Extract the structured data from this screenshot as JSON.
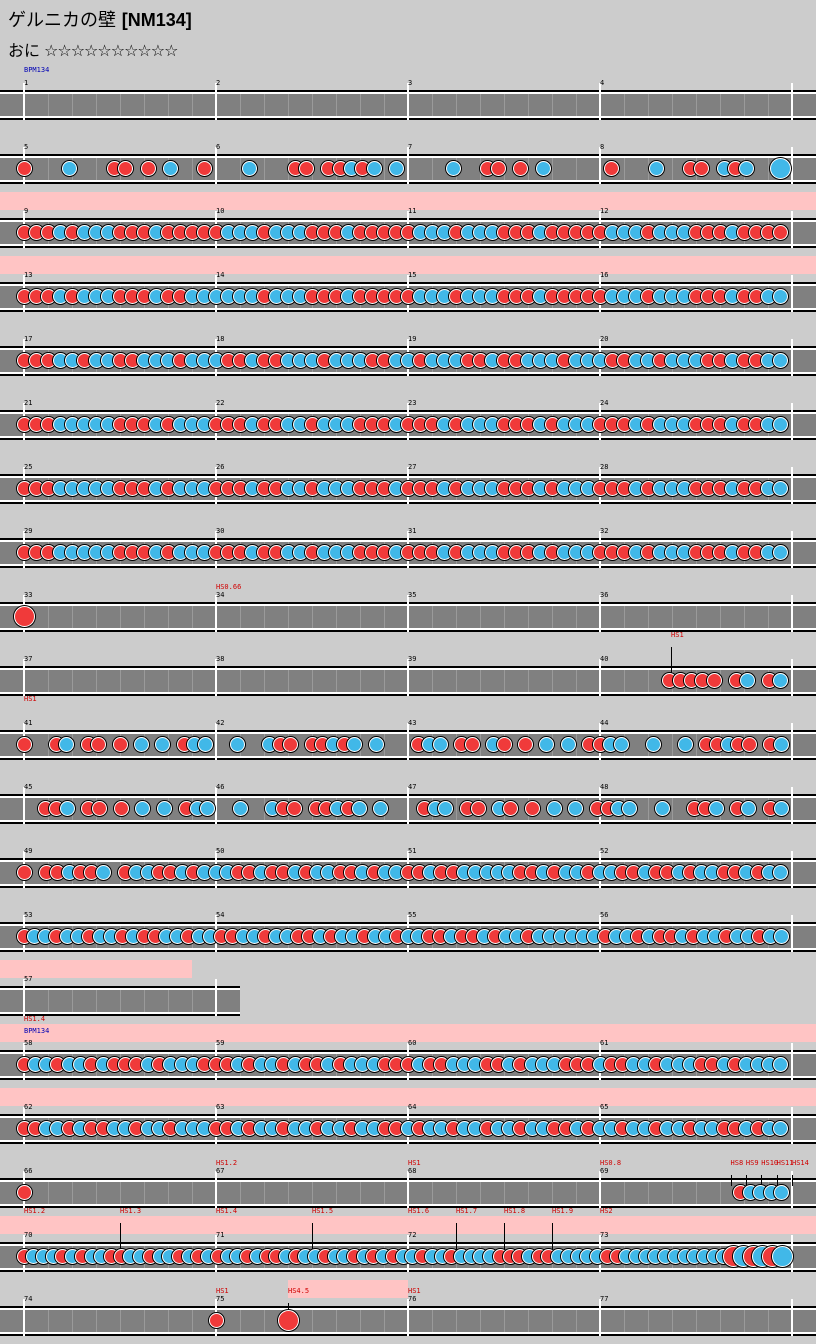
{
  "song": {
    "title": "ゲルニカの壁",
    "tag": "[NM134]"
  },
  "difficulty": {
    "label": "おに",
    "stars": "☆☆☆☆☆☆☆☆☆☆"
  },
  "rows": [
    {
      "measures": [
        "1",
        "2",
        "3",
        "4"
      ],
      "events": [
        {
          "text": "BPM134",
          "m": 0,
          "f": 0,
          "type": "bpm",
          "dy": 0
        }
      ],
      "notes": "................................................................................................"
    },
    {
      "measures": [
        "5",
        "6",
        "7",
        "8"
      ],
      "events": [],
      "notes": "r...b...rr.r.b..r...b...rr.rrbrb.b....b..rr.r.b.....r...b..rr.brb..B"
    },
    {
      "measures": [
        "9",
        "10",
        "11",
        "12"
      ],
      "gogo": [
        [
          0,
          4
        ]
      ],
      "events": [],
      "notes": "rrrbrbbbrrrbrrrrrbbbrbbbrrrbrrrrrbbbrbbbrrrbrrrrrbbbrbbbrrrbrrrr"
    },
    {
      "measures": [
        "13",
        "14",
        "15",
        "16"
      ],
      "gogo": [
        [
          0,
          4
        ]
      ],
      "events": [],
      "notes": "rrrbrbbbrrrbrrbbbbbbrbbbrrrbrrrrrbbbrbbbrrrbrrrrrbbbrbbbrrrbrrbb"
    },
    {
      "measures": [
        "17",
        "18",
        "19",
        "20"
      ],
      "events": [],
      "notes": "rrrbbrbbrrbbbrbbbrrbrrbbbrbbbrrbbrbbbrrbrrbbbrbbbrrbbrbbbrrbrrbb"
    },
    {
      "measures": [
        "21",
        "22",
        "23",
        "24"
      ],
      "events": [],
      "notes": "rrrbbbbbrrrbrbbbrrrbrrbbrbbbrrrbrrrbrbbbrrrbrbbbrrrbrbbbrrrbrrbb"
    },
    {
      "measures": [
        "25",
        "26",
        "27",
        "28"
      ],
      "events": [],
      "notes": "rrrbbbbbrrrbrbbbrrrbrrbbrbbbrrrbrrrbrbbbrrrbrbbbrrrbrbbbrrrbrrbb"
    },
    {
      "measures": [
        "29",
        "30",
        "31",
        "32"
      ],
      "events": [],
      "notes": "rrrbbbbbrrrbrbbbrrrbrrbbrbbbrrrbrrrbrbbbrrrbrbbbrrrbrbbbrrrbrrbb"
    },
    {
      "measures": [
        "33",
        "34",
        "35",
        "36"
      ],
      "events": [
        {
          "text": "HS0.66",
          "m": 1,
          "f": 0,
          "type": "hs",
          "dy": 0
        }
      ],
      "notes": "R..............................................................."
    },
    {
      "measures": [
        "37",
        "38",
        "39",
        "40"
      ],
      "events": [
        {
          "text": "HS1",
          "m": 3,
          "f": 0.37,
          "type": "hs",
          "dy": -16,
          "tick": true
        }
      ],
      "notes": "..........................................................rrrrr.rb.rb"
    },
    {
      "measures": [
        "41",
        "42",
        "43",
        "44"
      ],
      "events": [
        {
          "text": "HS1",
          "m": 0,
          "f": 0,
          "type": "hs",
          "dy": -16
        }
      ],
      "notes": "r..rb.rr.r.b.b.rbb..b..brr.rrbrb.b...rbb.rr.br.r.b.b.rrbb..b..b.rrbrr.rb"
    },
    {
      "measures": [
        "45",
        "46",
        "47",
        "48"
      ],
      "events": [],
      "notes": "..rrb.rr.r.b.b.rbb..b..brr.rrbrb.b...rbb.rr.br.r.b.b.rrbb..b..rrb.rb.rb"
    },
    {
      "measures": [
        "49",
        "50",
        "51",
        "52"
      ],
      "events": [],
      "notes": "r.rrbrrb.rbbrrbrbbbrrbrrbrbbrrbrbbrrbrrbbbbbrrbrbbrbbrrbrrbrbbrrbrbb"
    },
    {
      "measures": [
        "53",
        "54",
        "55",
        "56"
      ],
      "events": [],
      "notes": "rbbrbbrbbrbrrbbrbbrrbbrbbrrbrbbrbbrbbrrbrrbrbbrbbbbbbrbbrbrrbrbbrbbrbb"
    },
    {
      "measures": [
        "57"
      ],
      "gogo": [
        [
          0,
          0.875
        ]
      ],
      "short": 1.25,
      "events": [],
      "notes": ""
    },
    {
      "measures": [
        "58",
        "59",
        "60",
        "61"
      ],
      "gogo": [
        [
          0,
          4
        ]
      ],
      "events": [
        {
          "text": "HS1.4",
          "m": 0,
          "f": 0,
          "type": "hs",
          "dy": -16
        },
        {
          "text": "BPM134",
          "m": 0,
          "f": 0,
          "type": "bpm",
          "dy": -10
        }
      ],
      "notes": "rbbrbbrbrrrbrbbbrrrbrbbrbrrbrbbbrrrbrrbbbrrbrbbbrrrbrrbbrbbbrrbrbbbb"
    },
    {
      "measures": [
        "62",
        "63",
        "64",
        "65"
      ],
      "gogo": [
        [
          0,
          4
        ]
      ],
      "events": [],
      "notes": "rrbbrbrrbbrbbrbbbrrbrbbrbbrbbrbbrrbrbbrbbrbbrbbrrbrbbrbbrbbrbbrrbrbb"
    },
    {
      "measures": [
        "66",
        "67",
        "68",
        "69"
      ],
      "events": [
        {
          "text": "HS1.2",
          "m": 1,
          "f": 0,
          "type": "hs",
          "dy": 0
        },
        {
          "text": "HS1",
          "m": 2,
          "f": 0,
          "type": "hs",
          "dy": 0
        },
        {
          "text": "HS0.8",
          "m": 3,
          "f": 0,
          "type": "hs",
          "dy": 0
        },
        {
          "text": "HS8",
          "m": 3,
          "f": 0.68,
          "type": "hs",
          "dy": 0,
          "tick": true
        },
        {
          "text": "HS9",
          "m": 3,
          "f": 0.76,
          "type": "hs",
          "dy": 0,
          "tick": true
        },
        {
          "text": "HS10",
          "m": 3,
          "f": 0.84,
          "type": "hs",
          "dy": 0,
          "tick": true
        },
        {
          "text": "HS11",
          "m": 3,
          "f": 0.92,
          "type": "hs",
          "dy": 0,
          "tick": true
        },
        {
          "text": "HS14",
          "m": 3,
          "f": 1.0,
          "type": "hs",
          "dy": 0,
          "tick": true
        }
      ],
      "notes": "r....................................................................rbbbb"
    },
    {
      "measures": [
        "70",
        "71",
        "72",
        "73"
      ],
      "gogo": [
        [
          0,
          4
        ]
      ],
      "events": [
        {
          "text": "HS1.2",
          "m": 0,
          "f": 0,
          "type": "hs",
          "dy": -16
        },
        {
          "text": "HS1.3",
          "m": 0,
          "f": 0.5,
          "type": "hs",
          "dy": -16,
          "tick": true
        },
        {
          "text": "HS1.4",
          "m": 1,
          "f": 0,
          "type": "hs",
          "dy": -16
        },
        {
          "text": "HS1.5",
          "m": 1,
          "f": 0.5,
          "type": "hs",
          "dy": -16,
          "tick": true
        },
        {
          "text": "HS1.6",
          "m": 2,
          "f": 0,
          "type": "hs",
          "dy": -16
        },
        {
          "text": "HS1.7",
          "m": 2,
          "f": 0.25,
          "type": "hs",
          "dy": -16,
          "tick": true
        },
        {
          "text": "HS1.8",
          "m": 2,
          "f": 0.5,
          "type": "hs",
          "dy": -16,
          "tick": true
        },
        {
          "text": "HS1.9",
          "m": 2,
          "f": 0.75,
          "type": "hs",
          "dy": -16,
          "tick": true
        },
        {
          "text": "HS2",
          "m": 3,
          "f": 0,
          "type": "hs",
          "dy": -16
        }
      ],
      "notes": "rbbbrbrbbrrbbrbbrbrbrbbrbrrbrbbrbbrbrbrbbrbbrbbbbrrrbrrbbbbbrrbbbbbbbbbbbRBRBRB"
    },
    {
      "measures": [
        "74",
        "75",
        "76",
        "77"
      ],
      "gogo": [
        [
          1.375,
          2
        ]
      ],
      "events": [
        {
          "text": "HS1",
          "m": 1,
          "f": 0,
          "type": "hs",
          "dy": 0
        },
        {
          "text": "HS4.5",
          "m": 1,
          "f": 0.375,
          "type": "hs",
          "dy": 0,
          "tick": true
        },
        {
          "text": "HS1",
          "m": 2,
          "f": 0,
          "type": "hs",
          "dy": 0
        }
      ],
      "notes": "................r.....R"
    }
  ]
}
